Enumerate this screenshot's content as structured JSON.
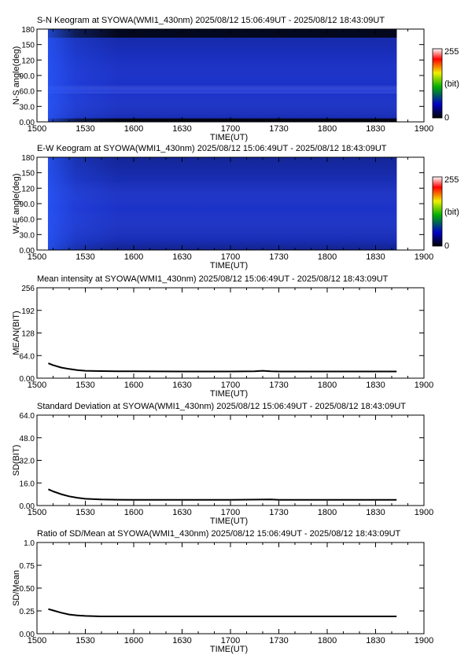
{
  "colorbar": {
    "max_label": "255",
    "unit_label": "(bit)",
    "min_label": "0"
  },
  "chart_data": [
    {
      "type": "heatmap",
      "title": "S-N Keogram at SYOWA(WMI1_430nm)    2025/08/12 15:06:49UT - 2025/08/12 18:43:09UT",
      "xlabel": "TIME(UT)",
      "ylabel": "N-S angle(deg)",
      "x_ticks": [
        "1500",
        "1530",
        "1600",
        "1630",
        "1700",
        "1730",
        "1800",
        "1830",
        "1900"
      ],
      "y_ticks": [
        "0.00",
        "30.0",
        "60.0",
        "90.0",
        "120",
        "150",
        "180"
      ],
      "y_range": [
        0,
        180
      ],
      "data_start": "15:06:49",
      "data_end": "18:43:09",
      "color": "#1b32c8"
    },
    {
      "type": "heatmap",
      "title": "E-W Keogram at SYOWA(WMI1_430nm)    2025/08/12 15:06:49UT - 2025/08/12 18:43:09UT",
      "xlabel": "TIME(UT)",
      "ylabel": "W-E angle(deg)",
      "x_ticks": [
        "1500",
        "1530",
        "1600",
        "1630",
        "1700",
        "1730",
        "1800",
        "1830",
        "1900"
      ],
      "y_ticks": [
        "0.00",
        "30.0",
        "60.0",
        "90.0",
        "120",
        "150",
        "180"
      ],
      "y_range": [
        0,
        180
      ],
      "data_start": "15:06:49",
      "data_end": "18:43:09",
      "color": "#1b32c8"
    },
    {
      "type": "line",
      "title": "Mean intensity at SYOWA(WMI1_430nm)    2025/08/12 15:06:49UT - 2025/08/12 18:43:09UT",
      "xlabel": "TIME(UT)",
      "ylabel": "MEAN(BIT)",
      "x_ticks": [
        "1500",
        "1530",
        "1600",
        "1630",
        "1700",
        "1730",
        "1800",
        "1830",
        "1900"
      ],
      "y_ticks": [
        "0.00",
        "64.0",
        "128",
        "192",
        "256"
      ],
      "y_range": [
        0,
        256
      ],
      "points": [
        [
          "15:07",
          42
        ],
        [
          "15:10",
          37
        ],
        [
          "15:15",
          30
        ],
        [
          "15:20",
          26
        ],
        [
          "15:25",
          23
        ],
        [
          "15:30",
          21
        ],
        [
          "15:40",
          20
        ],
        [
          "15:50",
          19.5
        ],
        [
          "16:00",
          19.5
        ],
        [
          "16:30",
          19
        ],
        [
          "17:00",
          19
        ],
        [
          "17:15",
          19.5
        ],
        [
          "17:20",
          21
        ],
        [
          "17:25",
          19.5
        ],
        [
          "17:30",
          19
        ],
        [
          "18:00",
          19
        ],
        [
          "18:30",
          19
        ],
        [
          "18:43",
          19
        ]
      ]
    },
    {
      "type": "line",
      "title": "Standard Deviation at SYOWA(WMI1_430nm)    2025/08/12 15:06:49UT - 2025/08/12 18:43:09UT",
      "xlabel": "TIME(UT)",
      "ylabel": "SD(BIT)",
      "x_ticks": [
        "1500",
        "1530",
        "1600",
        "1630",
        "1700",
        "1730",
        "1800",
        "1830",
        "1900"
      ],
      "y_ticks": [
        "0.00",
        "16.0",
        "32.0",
        "48.0",
        "64.0"
      ],
      "y_range": [
        0,
        64
      ],
      "points": [
        [
          "15:07",
          11.5
        ],
        [
          "15:10",
          10
        ],
        [
          "15:15",
          8
        ],
        [
          "15:20",
          6.5
        ],
        [
          "15:25",
          5.5
        ],
        [
          "15:30",
          4.8
        ],
        [
          "15:40",
          4.3
        ],
        [
          "15:50",
          4.1
        ],
        [
          "16:00",
          4
        ],
        [
          "17:00",
          4
        ],
        [
          "17:25",
          4.3
        ],
        [
          "17:30",
          4
        ],
        [
          "18:00",
          4
        ],
        [
          "18:43",
          4
        ]
      ]
    },
    {
      "type": "line",
      "title": "Ratio of SD/Mean at SYOWA(WMI1_430nm)    2025/08/12 15:06:49UT - 2025/08/12 18:43:09UT",
      "xlabel": "TIME(UT)",
      "ylabel": "SD/Mean",
      "x_ticks": [
        "1500",
        "1530",
        "1600",
        "1630",
        "1700",
        "1730",
        "1800",
        "1830",
        "1900"
      ],
      "y_ticks": [
        "0.00",
        "0.25",
        "0.50",
        "0.75",
        "1.0"
      ],
      "y_range": [
        0,
        1.0
      ],
      "points": [
        [
          "15:07",
          0.27
        ],
        [
          "15:10",
          0.255
        ],
        [
          "15:15",
          0.23
        ],
        [
          "15:20",
          0.21
        ],
        [
          "15:25",
          0.2
        ],
        [
          "15:30",
          0.195
        ],
        [
          "15:40",
          0.19
        ],
        [
          "16:00",
          0.19
        ],
        [
          "17:00",
          0.19
        ],
        [
          "18:00",
          0.19
        ],
        [
          "18:43",
          0.19
        ]
      ]
    }
  ]
}
